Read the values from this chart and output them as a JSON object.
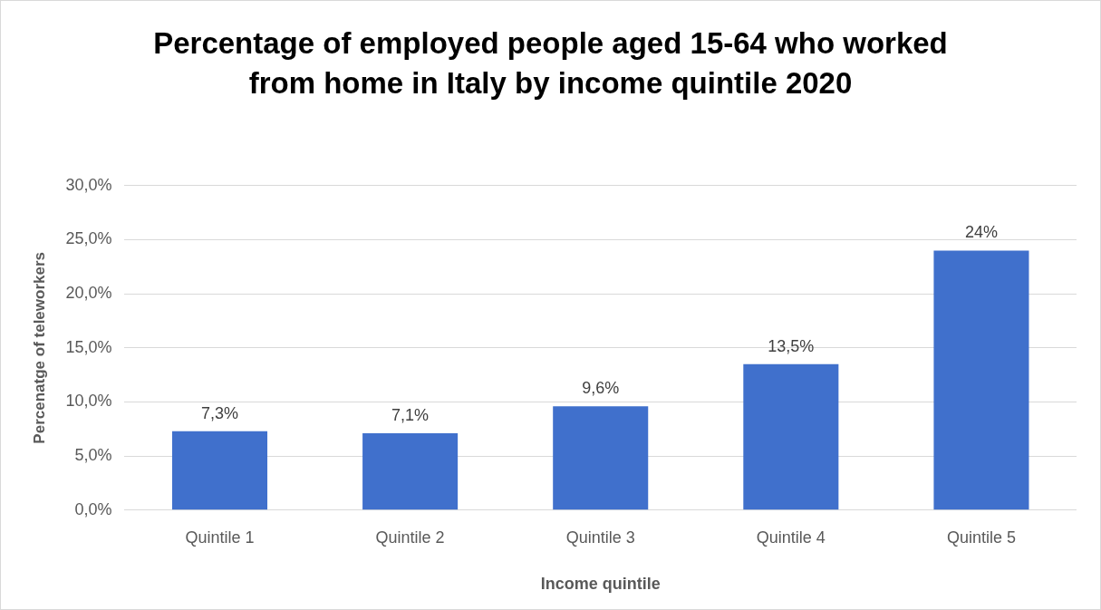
{
  "chart_data": {
    "type": "bar",
    "title": "Percentage of employed people aged 15-64 who worked from home in Italy by income quintile 2020",
    "xlabel": "Income quintile",
    "ylabel": "Percenatge of teleworkers",
    "categories": [
      "Quintile 1",
      "Quintile 2",
      "Quintile 3",
      "Quintile 4",
      "Quintile 5"
    ],
    "values": [
      7.3,
      7.1,
      9.6,
      13.5,
      24
    ],
    "value_labels": [
      "7,3%",
      "7,1%",
      "9,6%",
      "13,5%",
      "24%"
    ],
    "color": "#4070cc",
    "ylim": [
      0,
      30
    ],
    "yticks": [
      {
        "value": 0,
        "label": "0,0%"
      },
      {
        "value": 5,
        "label": "5,0%"
      },
      {
        "value": 10,
        "label": "10,0%"
      },
      {
        "value": 15,
        "label": "15,0%"
      },
      {
        "value": 20,
        "label": "20,0%"
      },
      {
        "value": 25,
        "label": "25,0%"
      },
      {
        "value": 30,
        "label": "30,0%"
      }
    ],
    "grid": "y",
    "legend": false
  }
}
